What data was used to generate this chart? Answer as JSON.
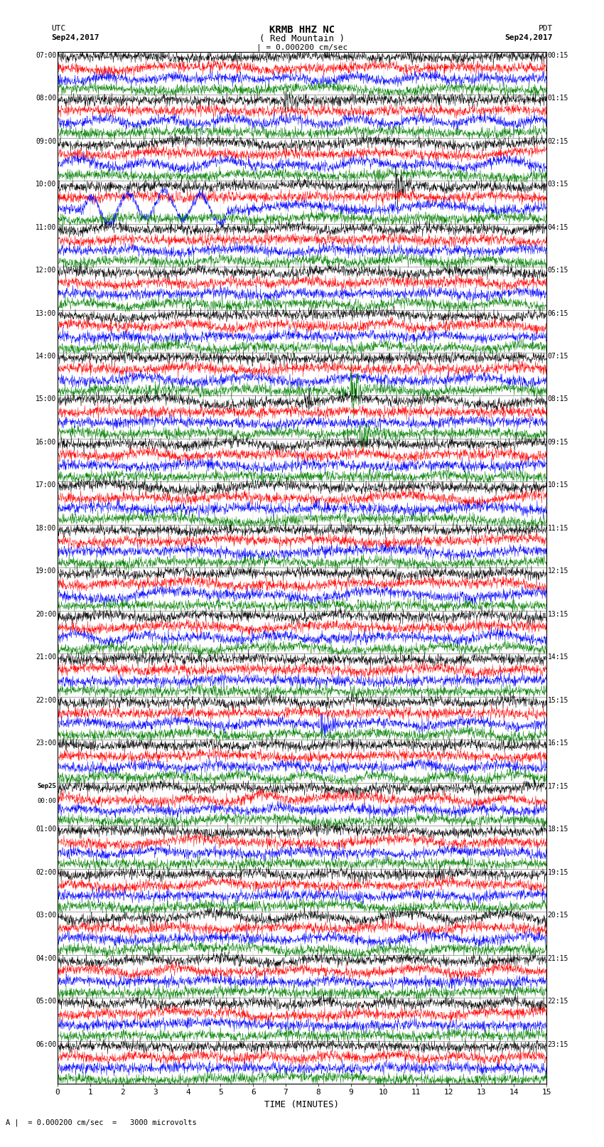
{
  "title_line1": "KRMB HHZ NC",
  "title_line2": "( Red Mountain )",
  "scale_text": "| = 0.000200 cm/sec",
  "bottom_label": "A |  = 0.000200 cm/sec  =   3000 microvolts",
  "xlabel": "TIME (MINUTES)",
  "left_label": "UTC",
  "left_date": "Sep24,2017",
  "right_label": "PDT",
  "right_date": "Sep24,2017",
  "colors": [
    "black",
    "red",
    "blue",
    "green"
  ],
  "bg_color": "white",
  "left_hour_labels": [
    "07:00",
    "08:00",
    "09:00",
    "10:00",
    "11:00",
    "12:00",
    "13:00",
    "14:00",
    "15:00",
    "16:00",
    "17:00",
    "18:00",
    "19:00",
    "20:00",
    "21:00",
    "22:00",
    "23:00",
    "Sep25\n00:00",
    "01:00",
    "02:00",
    "03:00",
    "04:00",
    "05:00",
    "06:00"
  ],
  "right_hour_labels": [
    "00:15",
    "01:15",
    "02:15",
    "03:15",
    "04:15",
    "05:15",
    "06:15",
    "07:15",
    "08:15",
    "09:15",
    "10:15",
    "11:15",
    "12:15",
    "13:15",
    "14:15",
    "15:15",
    "16:15",
    "17:15",
    "18:15",
    "19:15",
    "20:15",
    "21:15",
    "22:15",
    "23:15"
  ],
  "num_hours": 24,
  "traces_per_hour": 4,
  "minutes": 15,
  "noise_scale": 0.07,
  "event_prob": 0.08
}
